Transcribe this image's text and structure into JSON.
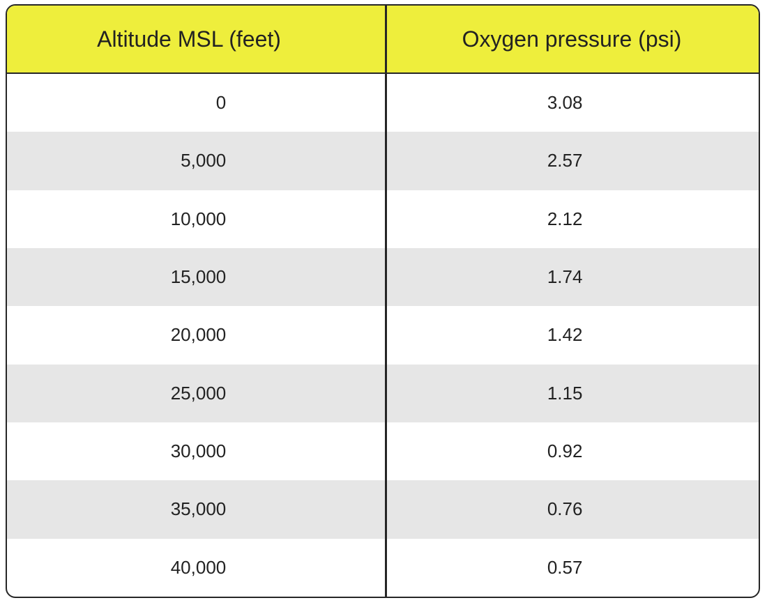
{
  "table": {
    "header": [
      "Altitude MSL (feet)",
      "Oxygen pressure (psi)"
    ],
    "rows": [
      [
        "0",
        "3.08"
      ],
      [
        "5,000",
        "2.57"
      ],
      [
        "10,000",
        "2.12"
      ],
      [
        "15,000",
        "1.74"
      ],
      [
        "20,000",
        "1.42"
      ],
      [
        "25,000",
        "1.15"
      ],
      [
        "30,000",
        "0.92"
      ],
      [
        "35,000",
        "0.76"
      ],
      [
        "40,000",
        "0.57"
      ]
    ]
  }
}
